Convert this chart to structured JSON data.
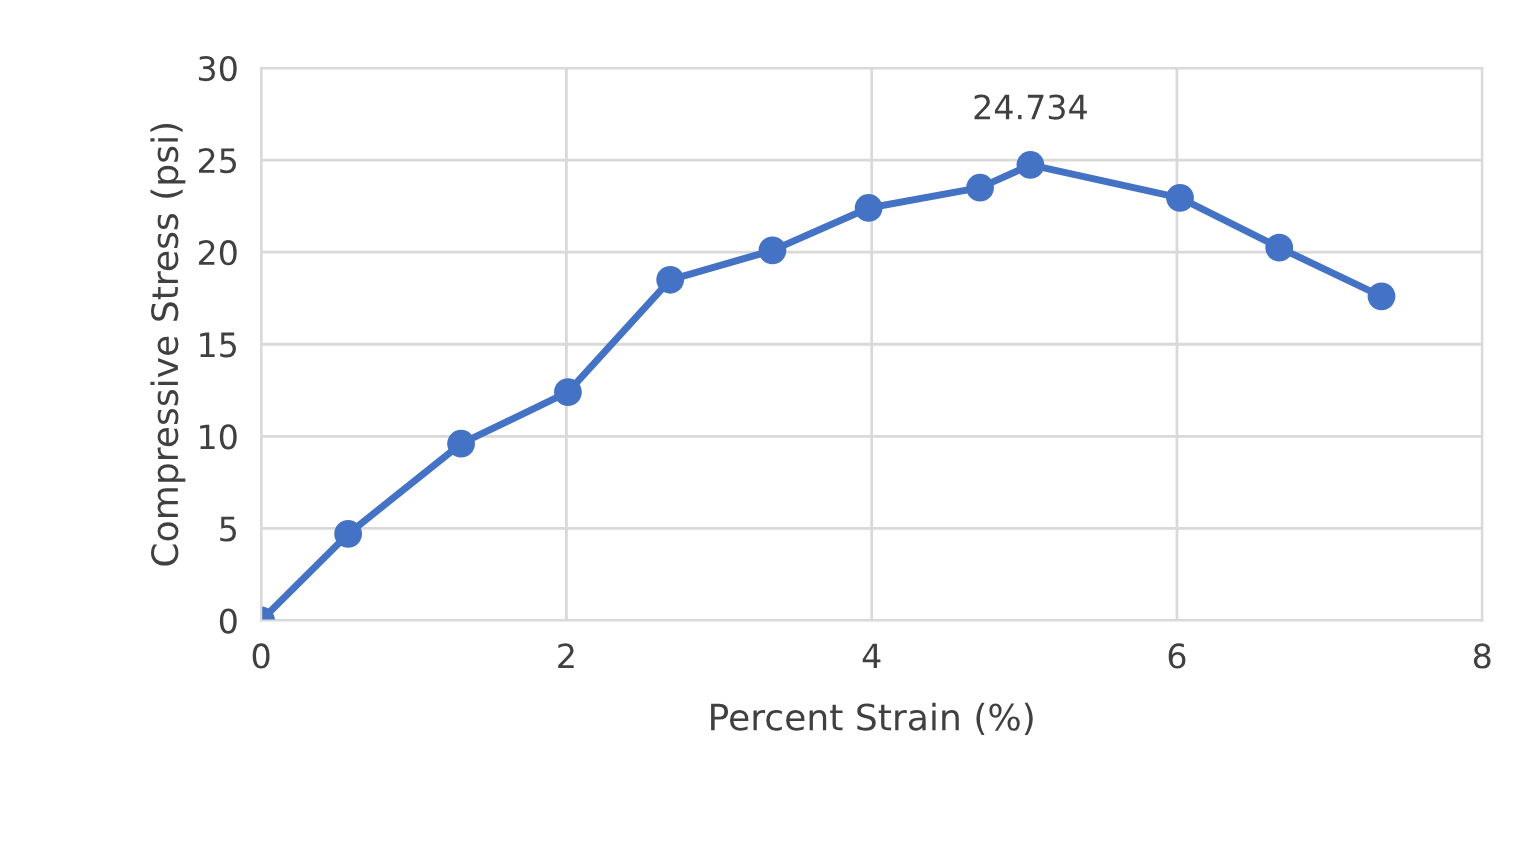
{
  "chart_data": {
    "type": "line",
    "xlabel": "Percent Strain (%)",
    "ylabel": "Compressive Stress (psi)",
    "xlim": [
      0,
      8
    ],
    "xticks": [
      0,
      2,
      4,
      6,
      8
    ],
    "ylim": [
      0,
      30
    ],
    "yticks": [
      0,
      5,
      10,
      15,
      20,
      25,
      30
    ],
    "grid": true,
    "marker": "circle",
    "line_style": "solid",
    "series": [
      {
        "color": "#4472c4",
        "x": [
          0,
          0.57,
          1.31,
          2.01,
          2.68,
          3.35,
          3.98,
          4.71,
          5.04,
          6.02,
          6.67,
          7.34
        ],
        "values": [
          0,
          4.7,
          9.6,
          12.4,
          18.5,
          20.1,
          22.4,
          23.5,
          24.734,
          22.95,
          20.25,
          17.6
        ],
        "value_labels": [
          null,
          null,
          null,
          null,
          null,
          null,
          null,
          null,
          "24.734",
          null,
          null,
          null
        ]
      }
    ]
  }
}
